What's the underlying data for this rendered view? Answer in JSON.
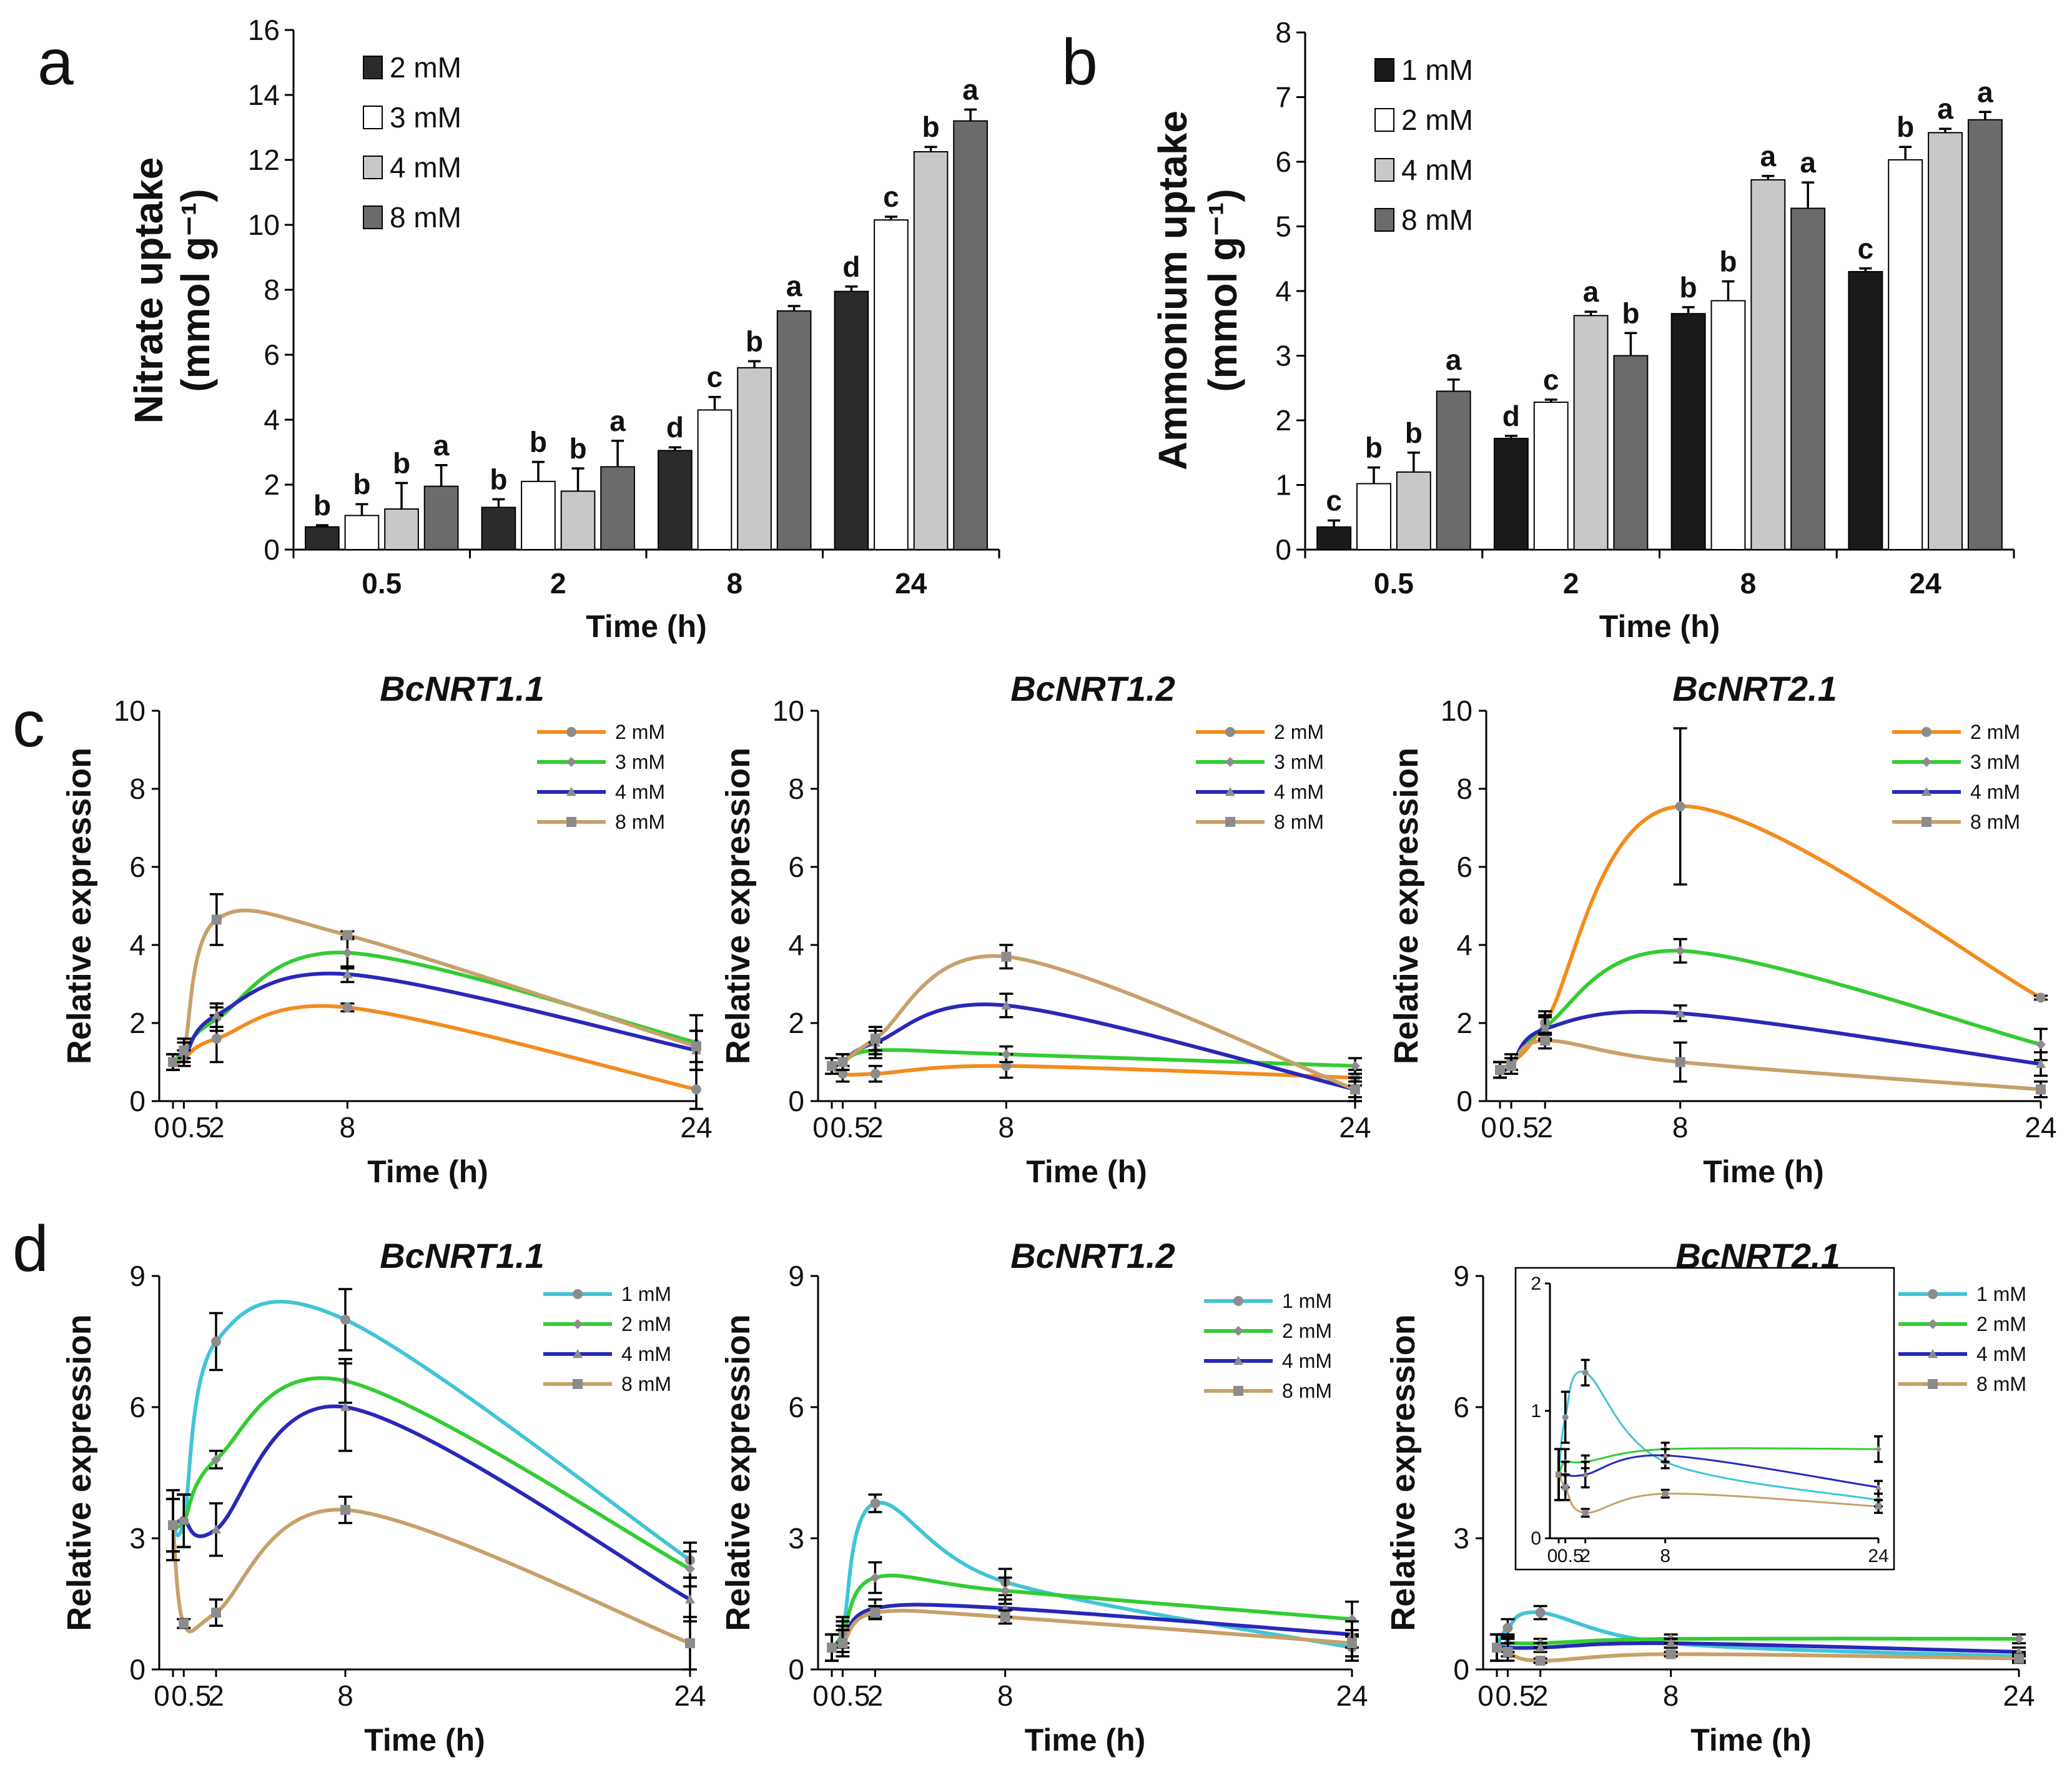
{
  "panel_labels": [
    "a",
    "b",
    "c",
    "d"
  ],
  "chart_data": [
    {
      "id": "a",
      "type": "bar",
      "title": "",
      "xlabel": "Time (h)",
      "ylabel_line1": "Nitrate uptake",
      "ylabel_line2": "(mmol g⁻¹)",
      "ylim": [
        0,
        16
      ],
      "yticks": [
        0,
        2,
        4,
        6,
        8,
        10,
        12,
        14,
        16
      ],
      "categories": [
        "0.5",
        "2",
        "8",
        "24"
      ],
      "series": [
        {
          "name": "2 mM",
          "color": "#2b2b2b",
          "values": [
            0.7,
            1.3,
            3.05,
            7.95
          ],
          "errors": [
            0.05,
            0.25,
            0.1,
            0.15
          ],
          "letters": [
            "b",
            "b",
            "d",
            "d"
          ]
        },
        {
          "name": "3 mM",
          "color": "#ffffff",
          "values": [
            1.05,
            2.1,
            4.3,
            10.15
          ],
          "errors": [
            0.35,
            0.6,
            0.4,
            0.1
          ],
          "letters": [
            "b",
            "b",
            "c",
            "c"
          ]
        },
        {
          "name": "4 mM",
          "color": "#c8c8c8",
          "values": [
            1.25,
            1.8,
            5.6,
            12.25
          ],
          "errors": [
            0.8,
            0.7,
            0.2,
            0.15
          ],
          "letters": [
            "b",
            "b",
            "b",
            "b"
          ]
        },
        {
          "name": "8 mM",
          "color": "#6b6b6b",
          "values": [
            1.95,
            2.55,
            7.35,
            13.2
          ],
          "errors": [
            0.65,
            0.8,
            0.15,
            0.35
          ],
          "letters": [
            "a",
            "a",
            "a",
            "a"
          ]
        }
      ]
    },
    {
      "id": "b",
      "type": "bar",
      "title": "",
      "xlabel": "Time (h)",
      "ylabel_line1": "Ammonium uptake",
      "ylabel_line2": "(mmol g⁻¹)",
      "ylim": [
        0,
        8
      ],
      "yticks": [
        0,
        1,
        2,
        3,
        4,
        5,
        6,
        7,
        8
      ],
      "categories": [
        "0.5",
        "2",
        "8",
        "24"
      ],
      "series": [
        {
          "name": "1 mM",
          "color": "#1a1a1a",
          "values": [
            0.35,
            1.72,
            3.65,
            4.3
          ],
          "errors": [
            0.1,
            0.04,
            0.1,
            0.05
          ],
          "letters": [
            "c",
            "d",
            "b",
            "c"
          ]
        },
        {
          "name": "2 mM",
          "color": "#ffffff",
          "values": [
            1.02,
            2.28,
            3.85,
            6.03
          ],
          "errors": [
            0.25,
            0.04,
            0.3,
            0.2
          ],
          "letters": [
            "b",
            "c",
            "b",
            "b"
          ]
        },
        {
          "name": "4 mM",
          "color": "#c8c8c8",
          "values": [
            1.2,
            3.62,
            5.72,
            6.45
          ],
          "errors": [
            0.3,
            0.06,
            0.06,
            0.06
          ],
          "letters": [
            "b",
            "a",
            "a",
            "a"
          ]
        },
        {
          "name": "8 mM",
          "color": "#6b6b6b",
          "values": [
            2.45,
            3.0,
            5.28,
            6.65
          ],
          "errors": [
            0.18,
            0.35,
            0.4,
            0.12
          ],
          "letters": [
            "a",
            "b",
            "a",
            "a"
          ]
        }
      ]
    },
    {
      "id": "c1",
      "type": "line",
      "title": "BcNRT1.1",
      "xlabel": "Time (h)",
      "ylabel": "Relative expression",
      "x": [
        0,
        0.5,
        2,
        8,
        24
      ],
      "xticklabels": [
        "0",
        "0.5",
        "2",
        "8",
        "24"
      ],
      "ylim": [
        0,
        10
      ],
      "yticks": [
        0,
        2,
        4,
        6,
        8,
        10
      ],
      "series": [
        {
          "name": "2 mM",
          "color": "#f28c1e",
          "values": [
            1.0,
            1.1,
            1.6,
            2.4,
            0.3
          ],
          "errors": [
            0.2,
            0.2,
            0.6,
            0.1,
            0.5
          ]
        },
        {
          "name": "3 mM",
          "color": "#33cc33",
          "values": [
            1.0,
            1.3,
            2.1,
            3.8,
            1.5
          ],
          "errors": [
            0.2,
            0.2,
            0.3,
            0.4,
            0.7
          ]
        },
        {
          "name": "4 mM",
          "color": "#2828b8",
          "values": [
            1.0,
            1.1,
            2.2,
            3.25,
            1.3
          ],
          "errors": [
            0.2,
            0.2,
            0.3,
            0.2,
            0.5
          ]
        },
        {
          "name": "8 mM",
          "color": "#c7a06a",
          "values": [
            1.0,
            1.3,
            4.65,
            4.25,
            1.4
          ],
          "errors": [
            0.2,
            0.3,
            0.65,
            0.1,
            0.4
          ]
        }
      ]
    },
    {
      "id": "c2",
      "type": "line",
      "title": "BcNRT1.2",
      "xlabel": "Time (h)",
      "ylabel": "Relative expression",
      "x": [
        0,
        0.5,
        2,
        8,
        24
      ],
      "xticklabels": [
        "0",
        "0.5",
        "2",
        "8",
        "24"
      ],
      "ylim": [
        0,
        10
      ],
      "yticks": [
        0,
        2,
        4,
        6,
        8,
        10
      ],
      "series": [
        {
          "name": "2 mM",
          "color": "#f28c1e",
          "values": [
            0.9,
            0.7,
            0.7,
            0.9,
            0.6
          ],
          "errors": [
            0.2,
            0.2,
            0.2,
            0.3,
            0.2
          ]
        },
        {
          "name": "3 mM",
          "color": "#33cc33",
          "values": [
            0.9,
            1.0,
            1.3,
            1.2,
            0.9
          ],
          "errors": [
            0.2,
            0.2,
            0.2,
            0.2,
            0.2
          ]
        },
        {
          "name": "4 mM",
          "color": "#2828b8",
          "values": [
            0.9,
            1.0,
            1.5,
            2.45,
            0.3
          ],
          "errors": [
            0.2,
            0.2,
            0.3,
            0.3,
            0.2
          ]
        },
        {
          "name": "8 mM",
          "color": "#c7a06a",
          "values": [
            0.9,
            1.0,
            1.6,
            3.7,
            0.3
          ],
          "errors": [
            0.2,
            0.2,
            0.3,
            0.3,
            0.3
          ]
        }
      ]
    },
    {
      "id": "c3",
      "type": "line",
      "title": "BcNRT2.1",
      "xlabel": "Time (h)",
      "ylabel": "Relative expression",
      "x": [
        0,
        0.5,
        2,
        8,
        24
      ],
      "xticklabels": [
        "0",
        "0.5",
        "2",
        "8",
        "24"
      ],
      "ylim": [
        0,
        10
      ],
      "yticks": [
        0,
        2,
        4,
        6,
        8,
        10
      ],
      "series": [
        {
          "name": "2 mM",
          "color": "#f28c1e",
          "values": [
            0.8,
            1.0,
            2.0,
            7.55,
            2.65
          ],
          "errors": [
            0.2,
            0.2,
            0.3,
            2.0,
            0.05
          ]
        },
        {
          "name": "3 mM",
          "color": "#33cc33",
          "values": [
            0.8,
            0.9,
            1.9,
            3.85,
            1.45
          ],
          "errors": [
            0.2,
            0.2,
            0.3,
            0.3,
            0.4
          ]
        },
        {
          "name": "4 mM",
          "color": "#2828b8",
          "values": [
            0.8,
            0.9,
            1.85,
            2.25,
            0.95
          ],
          "errors": [
            0.2,
            0.2,
            0.3,
            0.2,
            0.3
          ]
        },
        {
          "name": "8 mM",
          "color": "#c7a06a",
          "values": [
            0.8,
            0.9,
            1.55,
            1.0,
            0.3
          ],
          "errors": [
            0.2,
            0.2,
            0.2,
            0.5,
            0.2
          ]
        }
      ]
    },
    {
      "id": "d1",
      "type": "line",
      "title": "BcNRT1.1",
      "xlabel": "Time (h)",
      "ylabel": "Relative expression",
      "x": [
        0,
        0.5,
        2,
        8,
        24
      ],
      "xticklabels": [
        "0",
        "0.5",
        "2",
        "8",
        "24"
      ],
      "ylim": [
        0,
        9
      ],
      "yticks": [
        0,
        3,
        6,
        9
      ],
      "series": [
        {
          "name": "1 mM",
          "color": "#41c4d6",
          "values": [
            3.3,
            3.4,
            7.5,
            8.0,
            2.5
          ],
          "errors": [
            0.8,
            0.6,
            0.65,
            0.7,
            0.4
          ]
        },
        {
          "name": "2 mM",
          "color": "#33cc33",
          "values": [
            3.3,
            3.4,
            4.8,
            6.6,
            2.3
          ],
          "errors": [
            0.6,
            0.6,
            0.2,
            0.5,
            0.4
          ]
        },
        {
          "name": "4 mM",
          "color": "#2828b8",
          "values": [
            3.3,
            3.4,
            3.2,
            6.0,
            1.6
          ],
          "errors": [
            0.6,
            0.6,
            0.6,
            1.0,
            0.5
          ]
        },
        {
          "name": "8 mM",
          "color": "#c7a06a",
          "values": [
            3.3,
            1.05,
            1.3,
            3.65,
            0.6
          ],
          "errors": [
            0.6,
            0.1,
            0.3,
            0.3,
            0.6
          ]
        }
      ]
    },
    {
      "id": "d2",
      "type": "line",
      "title": "BcNRT1.2",
      "xlabel": "Time (h)",
      "ylabel": "Relative expression",
      "x": [
        0,
        0.5,
        2,
        8,
        24
      ],
      "xticklabels": [
        "0",
        "0.5",
        "2",
        "8",
        "24"
      ],
      "ylim": [
        0,
        9
      ],
      "yticks": [
        0,
        3,
        6,
        9
      ],
      "series": [
        {
          "name": "1 mM",
          "color": "#41c4d6",
          "values": [
            0.5,
            0.9,
            3.8,
            2.0,
            0.5
          ],
          "errors": [
            0.3,
            0.3,
            0.2,
            0.3,
            0.3
          ]
        },
        {
          "name": "2 mM",
          "color": "#33cc33",
          "values": [
            0.5,
            0.8,
            2.1,
            1.8,
            1.15
          ],
          "errors": [
            0.3,
            0.3,
            0.35,
            0.3,
            0.4
          ]
        },
        {
          "name": "4 mM",
          "color": "#2828b8",
          "values": [
            0.5,
            0.7,
            1.4,
            1.4,
            0.8
          ],
          "errors": [
            0.3,
            0.3,
            0.2,
            0.2,
            0.3
          ]
        },
        {
          "name": "8 mM",
          "color": "#c7a06a",
          "values": [
            0.5,
            0.6,
            1.3,
            1.2,
            0.6
          ],
          "errors": [
            0.3,
            0.3,
            0.15,
            0.15,
            0.3
          ]
        }
      ]
    },
    {
      "id": "d3",
      "type": "line",
      "title": "BcNRT2.1",
      "xlabel": "Time (h)",
      "ylabel": "Relative expression",
      "x": [
        0,
        0.5,
        2,
        8,
        24
      ],
      "xticklabels": [
        "0",
        "0.5",
        "2",
        "8",
        "24"
      ],
      "ylim": [
        0,
        9
      ],
      "yticks": [
        0,
        3,
        6,
        9
      ],
      "series": [
        {
          "name": "1 mM",
          "color": "#41c4d6",
          "values": [
            0.5,
            0.95,
            1.3,
            0.6,
            0.3
          ],
          "errors": [
            0.3,
            0.2,
            0.15,
            0.1,
            0.1
          ]
        },
        {
          "name": "2 mM",
          "color": "#33cc33",
          "values": [
            0.5,
            0.6,
            0.6,
            0.7,
            0.7
          ],
          "errors": [
            0.3,
            0.2,
            0.1,
            0.1,
            0.1
          ]
        },
        {
          "name": "4 mM",
          "color": "#2828b8",
          "values": [
            0.5,
            0.5,
            0.5,
            0.6,
            0.4
          ],
          "errors": [
            0.3,
            0.2,
            0.1,
            0.1,
            0.1
          ]
        },
        {
          "name": "8 mM",
          "color": "#c7a06a",
          "values": [
            0.5,
            0.4,
            0.2,
            0.35,
            0.25
          ],
          "errors": [
            0.3,
            0.2,
            0.05,
            0.05,
            0.1
          ]
        }
      ],
      "inset": {
        "ylim": [
          0,
          2
        ],
        "yticks": [
          0,
          1,
          2
        ],
        "xticklabels": [
          "0",
          "0.5",
          "2",
          "8",
          "24"
        ],
        "series": [
          {
            "name": "1 mM",
            "color": "#41c4d6",
            "values": [
              0.5,
              0.95,
              1.3,
              0.6,
              0.3
            ],
            "errors": [
              0.2,
              0.2,
              0.1,
              0.05,
              0.05
            ]
          },
          {
            "name": "2 mM",
            "color": "#33cc33",
            "values": [
              0.5,
              0.6,
              0.6,
              0.7,
              0.7
            ],
            "errors": [
              0.2,
              0.1,
              0.05,
              0.05,
              0.1
            ]
          },
          {
            "name": "4 mM",
            "color": "#2828b8",
            "values": [
              0.5,
              0.5,
              0.5,
              0.65,
              0.4
            ],
            "errors": [
              0.2,
              0.1,
              0.1,
              0.05,
              0.05
            ]
          },
          {
            "name": "8 mM",
            "color": "#c7a06a",
            "values": [
              0.5,
              0.4,
              0.2,
              0.35,
              0.25
            ],
            "errors": [
              0.2,
              0.1,
              0.03,
              0.03,
              0.05
            ]
          }
        ]
      }
    }
  ]
}
